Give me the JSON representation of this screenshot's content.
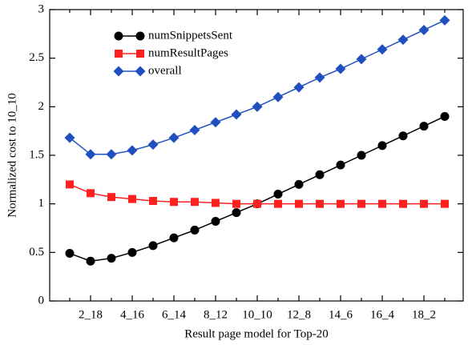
{
  "chart_data": {
    "type": "line",
    "x_label": "Result page model for Top-20",
    "y_label": "Normalized cost to 10_10",
    "categories": [
      null,
      "2_18",
      null,
      "4_16",
      null,
      "6_14",
      null,
      "8_12",
      null,
      "10_10",
      null,
      "12_8",
      null,
      "14_6",
      null,
      "16_4",
      null,
      "18_2",
      null
    ],
    "series": [
      {
        "name": "numSnippetsSent",
        "color": "#000000",
        "marker": "circle",
        "values": [
          0.49,
          0.41,
          0.44,
          0.5,
          0.57,
          0.65,
          0.73,
          0.82,
          0.91,
          1.0,
          1.1,
          1.2,
          1.3,
          1.4,
          1.5,
          1.6,
          1.7,
          1.8,
          1.9
        ]
      },
      {
        "name": "numResultPages",
        "color": "#ff2020",
        "marker": "square",
        "values": [
          1.2,
          1.11,
          1.07,
          1.05,
          1.03,
          1.02,
          1.02,
          1.01,
          1.0,
          1.0,
          1.0,
          1.0,
          1.0,
          1.0,
          1.0,
          1.0,
          1.0,
          1.0,
          1.0
        ]
      },
      {
        "name": "overall",
        "color": "#2050c0",
        "marker": "diamond",
        "values": [
          1.68,
          1.51,
          1.51,
          1.55,
          1.61,
          1.68,
          1.76,
          1.84,
          1.92,
          2.0,
          2.1,
          2.2,
          2.3,
          2.39,
          2.49,
          2.59,
          2.69,
          2.79,
          2.89
        ]
      }
    ],
    "ylim": [
      0,
      3
    ],
    "yticks": [
      0,
      0.5,
      1,
      1.5,
      2,
      2.5,
      3
    ],
    "grid": false,
    "legend_position": "upper-left"
  }
}
